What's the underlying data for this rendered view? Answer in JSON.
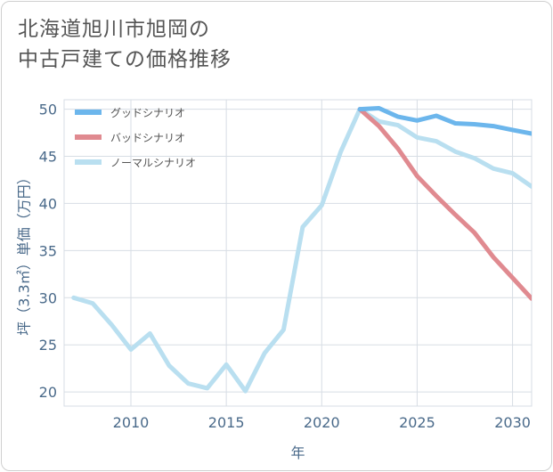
{
  "title": "北海道旭川市旭岡の\n中古戸建ての価格推移",
  "chart_data": {
    "type": "line",
    "xlabel": "年",
    "ylabel": "坪（3.3㎡）単価（万円）",
    "xlim": [
      2006.5,
      2031
    ],
    "ylim": [
      18.5,
      51
    ],
    "xticks": [
      2010,
      2015,
      2020,
      2025,
      2030
    ],
    "yticks": [
      20,
      25,
      30,
      35,
      40,
      45,
      50
    ],
    "grid": true,
    "legend_position": "top-left",
    "series": [
      {
        "name": "グッドシナリオ",
        "color": "#6cb6ec",
        "x": [
          2022,
          2023,
          2024,
          2025,
          2026,
          2027,
          2028,
          2029,
          2030,
          2031
        ],
        "y": [
          50.0,
          50.1,
          49.2,
          48.8,
          49.3,
          48.5,
          48.4,
          48.2,
          47.8,
          47.4
        ]
      },
      {
        "name": "バッドシナリオ",
        "color": "#e08a90",
        "x": [
          2022,
          2023,
          2024,
          2025,
          2026,
          2027,
          2028,
          2029,
          2030,
          2031
        ],
        "y": [
          50.0,
          48.2,
          45.8,
          42.9,
          40.8,
          38.8,
          36.9,
          34.3,
          32.1,
          29.9
        ]
      },
      {
        "name": "ノーマルシナリオ",
        "color": "#b9dff0",
        "x": [
          2007,
          2008,
          2009,
          2010,
          2011,
          2012,
          2013,
          2014,
          2015,
          2016,
          2017,
          2018,
          2019,
          2020,
          2021,
          2022,
          2023,
          2024,
          2025,
          2026,
          2027,
          2028,
          2029,
          2030,
          2031
        ],
        "y": [
          30.0,
          29.4,
          27.1,
          24.5,
          26.2,
          22.8,
          20.9,
          20.4,
          22.9,
          20.1,
          24.1,
          26.6,
          37.5,
          39.8,
          45.5,
          50.0,
          48.7,
          48.3,
          47.0,
          46.6,
          45.5,
          44.8,
          43.7,
          43.2,
          41.8
        ]
      }
    ]
  }
}
